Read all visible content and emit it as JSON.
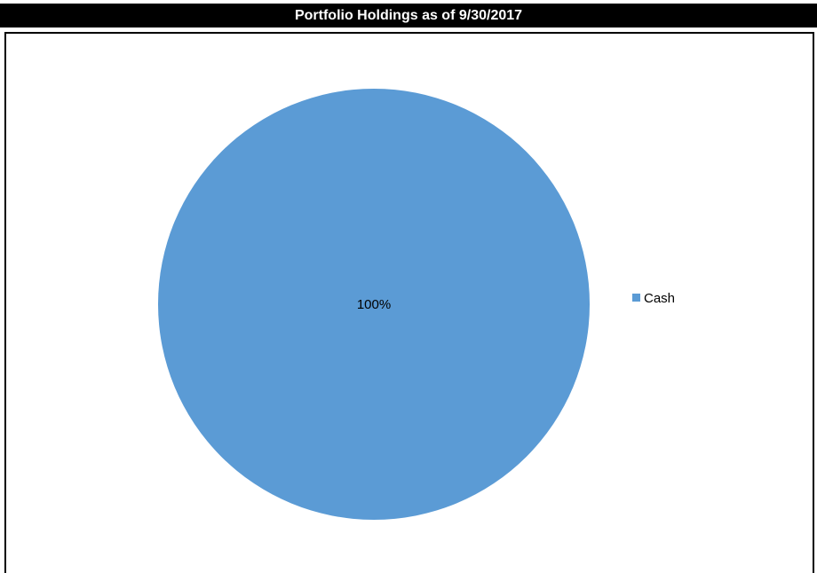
{
  "chart_data": {
    "type": "pie",
    "title": "Portfolio Holdings as of 9/30/2017",
    "categories": [
      "Cash"
    ],
    "values": [
      100
    ],
    "data_labels": [
      "100%"
    ],
    "colors": [
      "#5b9bd5"
    ],
    "legend_position": "right"
  }
}
